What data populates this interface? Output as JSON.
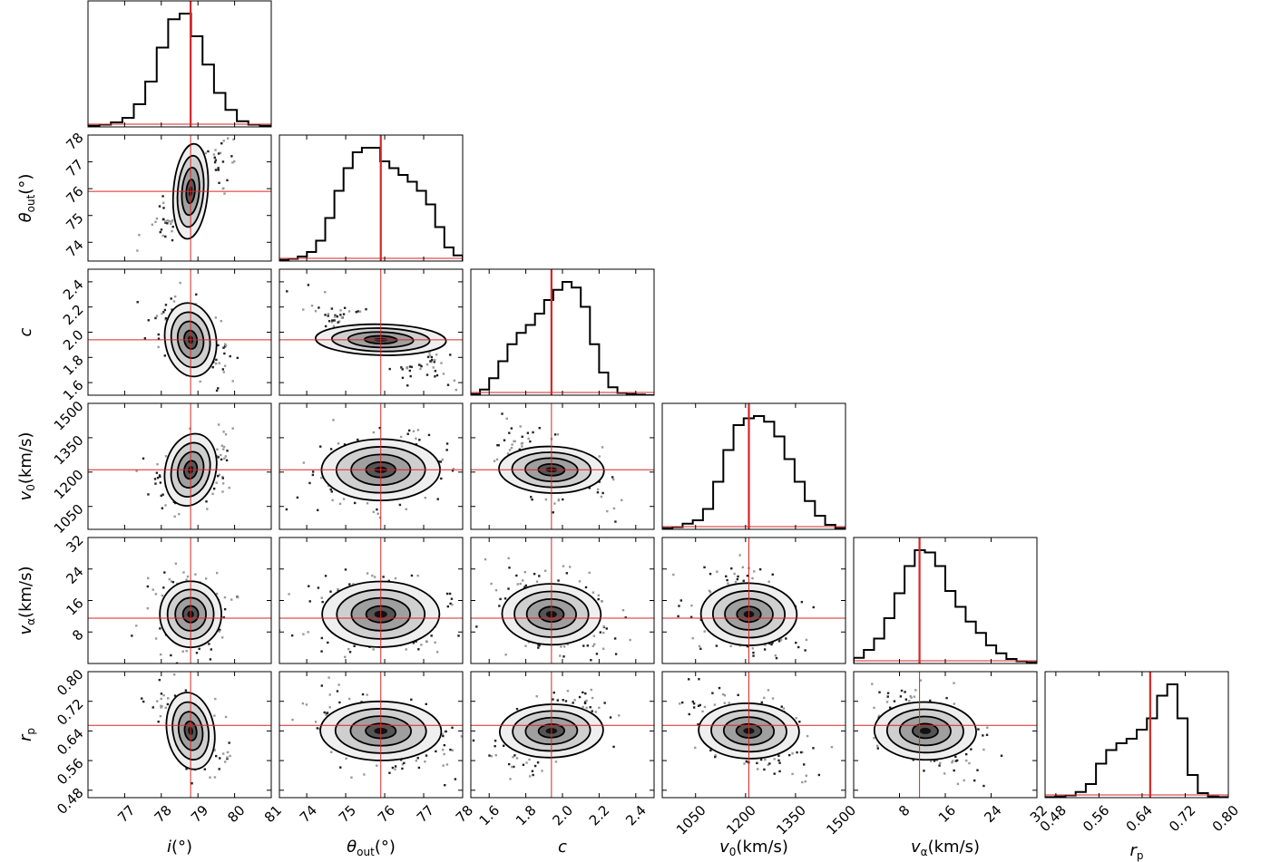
{
  "chart_data": {
    "type": "corner",
    "parameters": [
      {
        "key": "i",
        "label": "i",
        "unit": "(°)",
        "range": [
          76,
          81
        ],
        "ticks": [
          77,
          78,
          79,
          80,
          81
        ],
        "truth": 78.8,
        "mean": 78.8,
        "sd": 0.42
      },
      {
        "key": "theta_out",
        "label": "θ",
        "sub": "out",
        "unit": "(°)",
        "range": [
          73.3,
          78.0
        ],
        "ticks": [
          74,
          75,
          76,
          77,
          78
        ],
        "truth": 75.9,
        "mean": 75.9,
        "sd": 0.75
      },
      {
        "key": "c",
        "label": "c",
        "unit": "",
        "range": [
          1.5,
          2.5
        ],
        "ticks": [
          1.6,
          1.8,
          2.0,
          2.2,
          2.4
        ],
        "truth": 1.94,
        "mean": 1.94,
        "sd": 0.13
      },
      {
        "key": "v0",
        "label": "v",
        "sub": "0",
        "unit": "(km/s)",
        "range": [
          950,
          1500
        ],
        "ticks": [
          1050,
          1200,
          1350,
          1500
        ],
        "truth": 1210,
        "mean": 1210,
        "sd": 70
      },
      {
        "key": "v_alpha",
        "label": "v",
        "sub": "α",
        "unit": "(km/s)",
        "range": [
          0,
          32
        ],
        "ticks": [
          8,
          16,
          24,
          32
        ],
        "truth": 11.5,
        "mean": 12.5,
        "sd": 4.2
      },
      {
        "key": "r_p",
        "label": "r",
        "sub": "p",
        "unit": "",
        "range": [
          0.46,
          0.8
        ],
        "ticks": [
          0.48,
          0.56,
          0.64,
          0.72,
          0.8
        ],
        "truth": 0.655,
        "mean": 0.64,
        "sd": 0.045
      }
    ],
    "tick_labels": {
      "i": [
        "77",
        "78",
        "79",
        "80",
        "81"
      ],
      "theta_out": [
        "74",
        "75",
        "76",
        "77",
        "78"
      ],
      "c": [
        "1.6",
        "1.8",
        "2.0",
        "2.2",
        "2.4"
      ],
      "v0": [
        "1050",
        "1200",
        "1350",
        "1500"
      ],
      "v_alpha": [
        "8",
        "16",
        "24",
        "32"
      ],
      "r_p": [
        "0.48",
        "0.56",
        "0.64",
        "0.72",
        "0.80"
      ]
    },
    "histograms": {
      "i": [
        0.01,
        0.02,
        0.04,
        0.08,
        0.2,
        0.4,
        0.7,
        0.95,
        1.0,
        0.8,
        0.55,
        0.3,
        0.15,
        0.05,
        0.02,
        0.01
      ],
      "theta_out": [
        0.01,
        0.02,
        0.04,
        0.08,
        0.18,
        0.38,
        0.62,
        0.82,
        0.96,
        1.0,
        1.0,
        0.88,
        0.82,
        0.76,
        0.7,
        0.62,
        0.5,
        0.3,
        0.12,
        0.05
      ],
      "c": [
        0.01,
        0.05,
        0.15,
        0.3,
        0.45,
        0.55,
        0.62,
        0.72,
        0.84,
        0.93,
        1.0,
        0.95,
        0.78,
        0.45,
        0.2,
        0.07,
        0.02,
        0.01,
        0.005,
        0.0
      ],
      "v0": [
        0.01,
        0.02,
        0.05,
        0.08,
        0.18,
        0.42,
        0.7,
        0.92,
        0.98,
        1.0,
        0.95,
        0.82,
        0.62,
        0.42,
        0.25,
        0.12,
        0.04,
        0.01
      ],
      "v_alpha": [
        0.05,
        0.12,
        0.22,
        0.4,
        0.62,
        0.86,
        1.0,
        0.98,
        0.86,
        0.64,
        0.5,
        0.37,
        0.27,
        0.16,
        0.09,
        0.04,
        0.02,
        0.01
      ],
      "r_p": [
        0.005,
        0.01,
        0.02,
        0.05,
        0.12,
        0.3,
        0.42,
        0.48,
        0.52,
        0.6,
        0.7,
        0.9,
        1.0,
        0.7,
        0.2,
        0.04,
        0.01,
        0.005
      ]
    },
    "correlations": [
      [
        "i",
        "theta_out",
        0.75
      ],
      [
        "i",
        "c",
        -0.35
      ],
      [
        "theta_out",
        "c",
        -0.85
      ],
      [
        "i",
        "v0",
        0.35
      ],
      [
        "theta_out",
        "v0",
        0.25
      ],
      [
        "c",
        "v0",
        -0.6
      ],
      [
        "i",
        "v_alpha",
        0.0
      ],
      [
        "theta_out",
        "v_alpha",
        0.1
      ],
      [
        "c",
        "v_alpha",
        -0.3
      ],
      [
        "v0",
        "v_alpha",
        -0.25
      ],
      [
        "i",
        "r_p",
        -0.45
      ],
      [
        "theta_out",
        "r_p",
        -0.4
      ],
      [
        "c",
        "r_p",
        0.5
      ],
      [
        "v0",
        "r_p",
        -0.45
      ],
      [
        "v_alpha",
        "r_p",
        -0.4
      ]
    ],
    "contour_levels_sigma": [
      0.5,
      1.0,
      1.5,
      2.0
    ],
    "truth_line_color": "#d62728",
    "line_color": "#000000",
    "fill_color": "#808080"
  }
}
